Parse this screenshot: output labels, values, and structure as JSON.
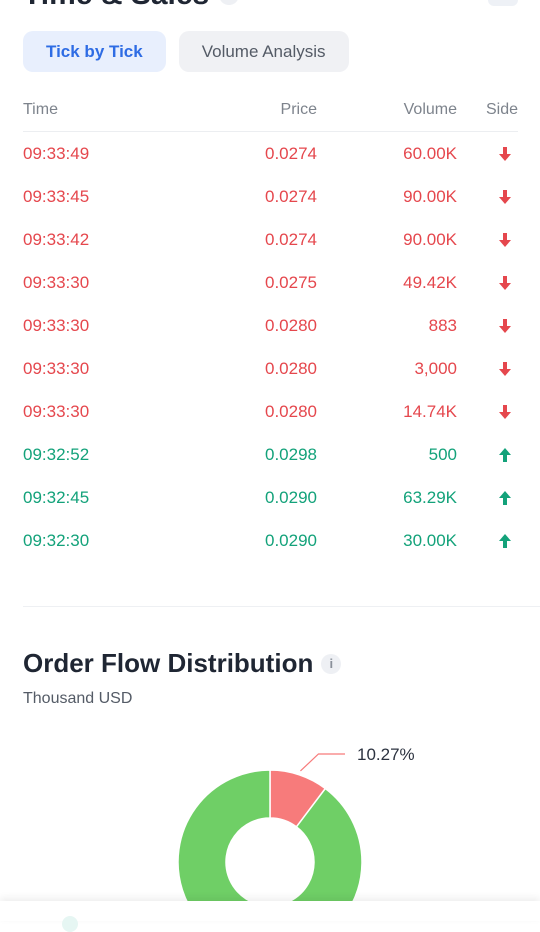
{
  "time_sales": {
    "title": "Time & Sales",
    "tabs": [
      {
        "label": "Tick by Tick",
        "active": true
      },
      {
        "label": "Volume Analysis",
        "active": false
      }
    ],
    "columns": {
      "time": "Time",
      "price": "Price",
      "volume": "Volume",
      "side": "Side"
    },
    "rows": [
      {
        "time": "09:33:49",
        "price": "0.0274",
        "volume": "60.00K",
        "side": "sell"
      },
      {
        "time": "09:33:45",
        "price": "0.0274",
        "volume": "90.00K",
        "side": "sell"
      },
      {
        "time": "09:33:42",
        "price": "0.0274",
        "volume": "90.00K",
        "side": "sell"
      },
      {
        "time": "09:33:30",
        "price": "0.0275",
        "volume": "49.42K",
        "side": "sell"
      },
      {
        "time": "09:33:30",
        "price": "0.0280",
        "volume": "883",
        "side": "sell"
      },
      {
        "time": "09:33:30",
        "price": "0.0280",
        "volume": "3,000",
        "side": "sell"
      },
      {
        "time": "09:33:30",
        "price": "0.0280",
        "volume": "14.74K",
        "side": "sell"
      },
      {
        "time": "09:32:52",
        "price": "0.0298",
        "volume": "500",
        "side": "buy"
      },
      {
        "time": "09:32:45",
        "price": "0.0290",
        "volume": "63.29K",
        "side": "buy"
      },
      {
        "time": "09:32:30",
        "price": "0.0290",
        "volume": "30.00K",
        "side": "buy"
      }
    ]
  },
  "order_flow": {
    "title": "Order Flow Distribution",
    "info_icon": "i",
    "subtitle": "Thousand USD",
    "slice_label": "10.27%"
  },
  "colors": {
    "sell": "#e5474d",
    "buy": "#13a27a",
    "donut_red": "#f77b7b",
    "donut_green": "#6fcf66"
  },
  "chart_data": {
    "type": "pie",
    "slices": [
      {
        "label": "10.27%",
        "value": 10.27,
        "color": "#f77b7b"
      },
      {
        "label": "",
        "value": 89.73,
        "color": "#6fcf66"
      }
    ]
  }
}
